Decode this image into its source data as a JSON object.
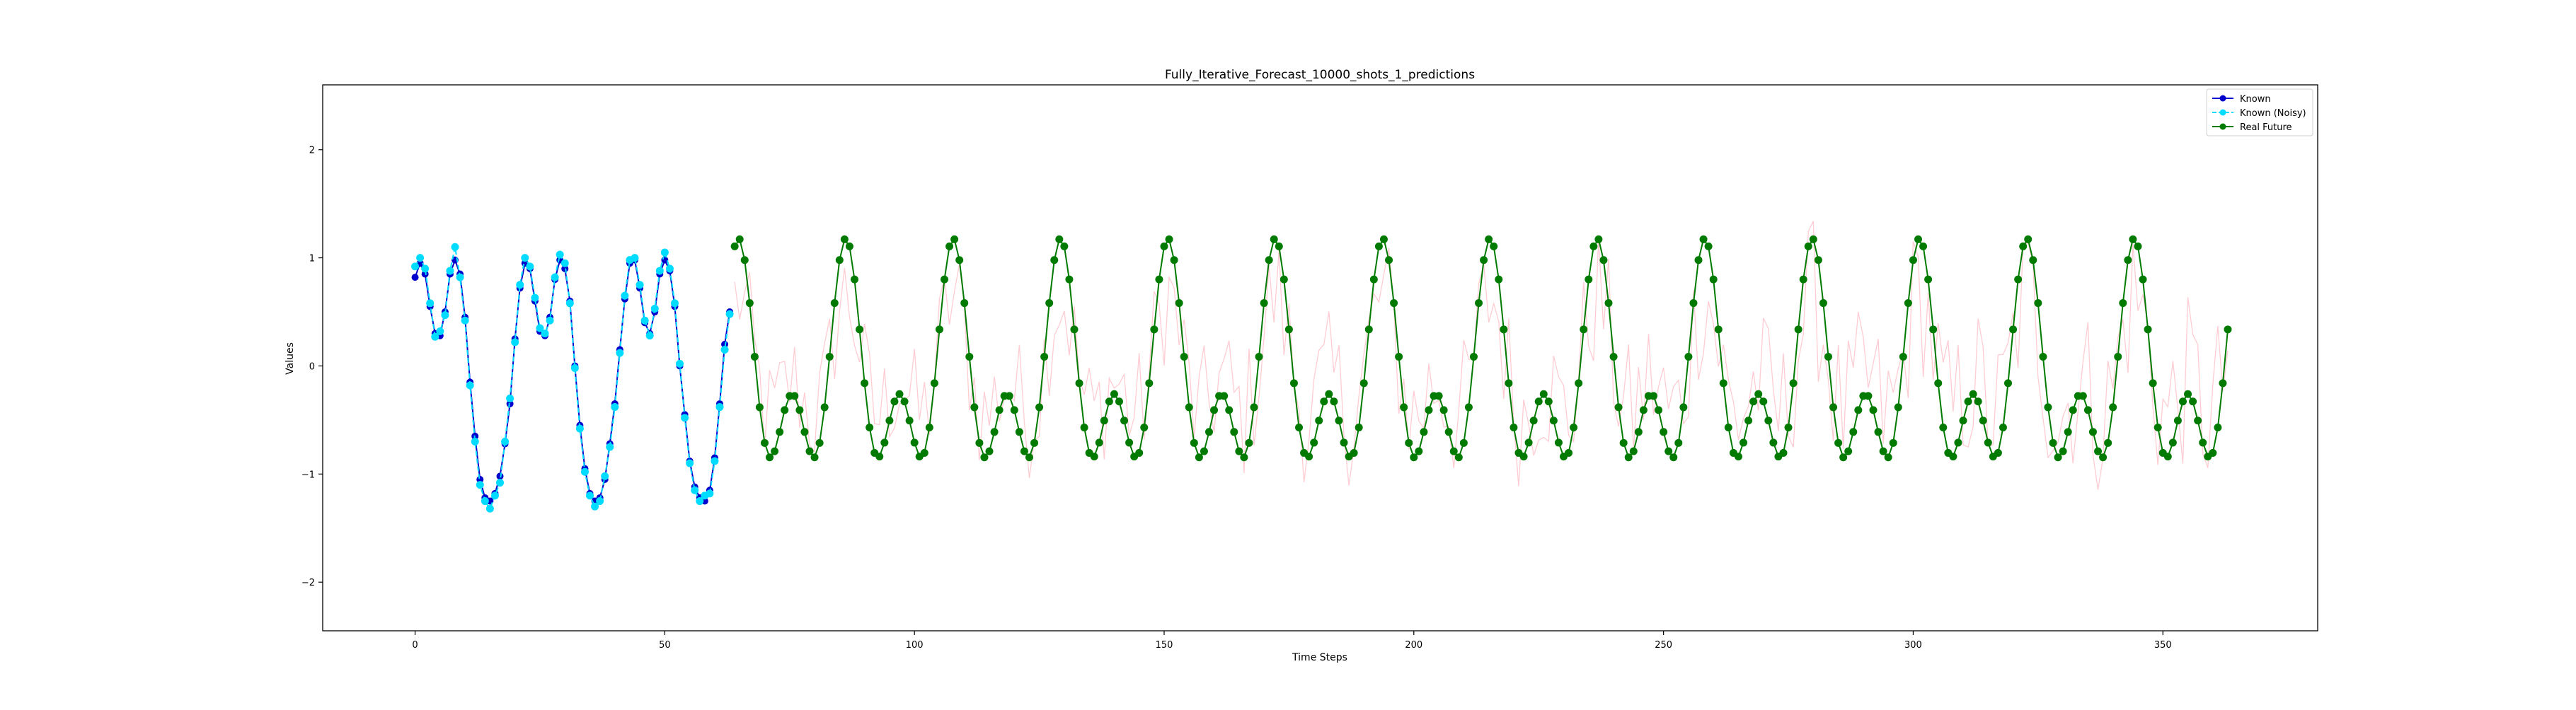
{
  "chart_data": {
    "type": "line",
    "title": "Fully_Iterative_Forecast_10000_shots_1_predictions",
    "xlabel": "Time Steps",
    "ylabel": "Values",
    "xlim": [
      -18.5,
      381
    ],
    "ylim": [
      -2.45,
      2.6
    ],
    "xticks": [
      0,
      50,
      100,
      150,
      200,
      250,
      300,
      350
    ],
    "yticks": [
      -2,
      -1,
      0,
      1,
      2
    ],
    "grid": false,
    "legend_position": "top-right",
    "series": [
      {
        "name": "Known",
        "color": "#0000cc",
        "marker": "circle",
        "x": [
          0,
          1,
          2,
          3,
          4,
          5,
          6,
          7,
          8,
          9,
          10,
          11,
          12,
          13,
          14,
          15,
          16,
          17,
          18,
          19,
          20,
          21,
          22,
          23,
          24,
          25,
          26,
          27,
          28,
          29,
          30,
          31,
          32,
          33,
          34,
          35,
          36,
          37,
          38,
          39,
          40,
          41,
          42,
          43,
          44,
          45,
          46,
          47,
          48,
          49,
          50,
          51,
          52,
          53,
          54,
          55,
          56,
          57,
          58,
          59,
          60,
          61,
          62,
          63
        ],
        "values": [
          0.82,
          0.95,
          0.85,
          0.55,
          0.3,
          0.28,
          0.5,
          0.85,
          0.98,
          0.85,
          0.45,
          -0.15,
          -0.65,
          -1.05,
          -1.22,
          -1.25,
          -1.18,
          -1.02,
          -0.72,
          -0.35,
          0.25,
          0.72,
          0.95,
          0.9,
          0.6,
          0.32,
          0.28,
          0.45,
          0.8,
          0.98,
          0.9,
          0.6,
          0.0,
          -0.55,
          -0.95,
          -1.18,
          -1.25,
          -1.22,
          -1.05,
          -0.72,
          -0.35,
          0.15,
          0.62,
          0.95,
          0.98,
          0.72,
          0.4,
          0.3,
          0.5,
          0.85,
          0.98,
          0.88,
          0.55,
          0.0,
          -0.45,
          -0.88,
          -1.12,
          -1.22,
          -1.25,
          -1.15,
          -0.85,
          -0.35,
          0.2,
          0.5
        ]
      },
      {
        "name": "Known (Noisy)",
        "color": "#00dcff",
        "marker": "circle",
        "x": [
          0,
          1,
          2,
          3,
          4,
          5,
          6,
          7,
          8,
          9,
          10,
          11,
          12,
          13,
          14,
          15,
          16,
          17,
          18,
          19,
          20,
          21,
          22,
          23,
          24,
          25,
          26,
          27,
          28,
          29,
          30,
          31,
          32,
          33,
          34,
          35,
          36,
          37,
          38,
          39,
          40,
          41,
          42,
          43,
          44,
          45,
          46,
          47,
          48,
          49,
          50,
          51,
          52,
          53,
          54,
          55,
          56,
          57,
          58,
          59,
          60,
          61,
          62,
          63
        ],
        "values": [
          0.92,
          1.0,
          0.9,
          0.58,
          0.27,
          0.32,
          0.47,
          0.88,
          1.1,
          0.82,
          0.42,
          -0.18,
          -0.7,
          -1.1,
          -1.25,
          -1.32,
          -1.2,
          -1.08,
          -0.7,
          -0.3,
          0.22,
          0.75,
          1.0,
          0.92,
          0.63,
          0.35,
          0.3,
          0.42,
          0.82,
          1.03,
          0.95,
          0.58,
          -0.02,
          -0.58,
          -0.98,
          -1.2,
          -1.3,
          -1.25,
          -1.02,
          -0.75,
          -0.38,
          0.12,
          0.65,
          0.98,
          1.0,
          0.75,
          0.42,
          0.28,
          0.53,
          0.88,
          1.05,
          0.9,
          0.58,
          0.02,
          -0.48,
          -0.9,
          -1.15,
          -1.25,
          -1.2,
          -1.18,
          -0.88,
          -0.38,
          0.15,
          0.48
        ]
      },
      {
        "name": "Real Future",
        "color": "#007a00",
        "marker": "circle",
        "x_start": 64,
        "x_end": 363,
        "period": 21.5,
        "phase": 0.25,
        "a1": 0.72,
        "a2": 0.6,
        "offset": -0.14
      },
      {
        "name": "",
        "color": "#ffb6c1",
        "x_start": 64,
        "x_end": 363,
        "note_visible": false
      }
    ]
  }
}
